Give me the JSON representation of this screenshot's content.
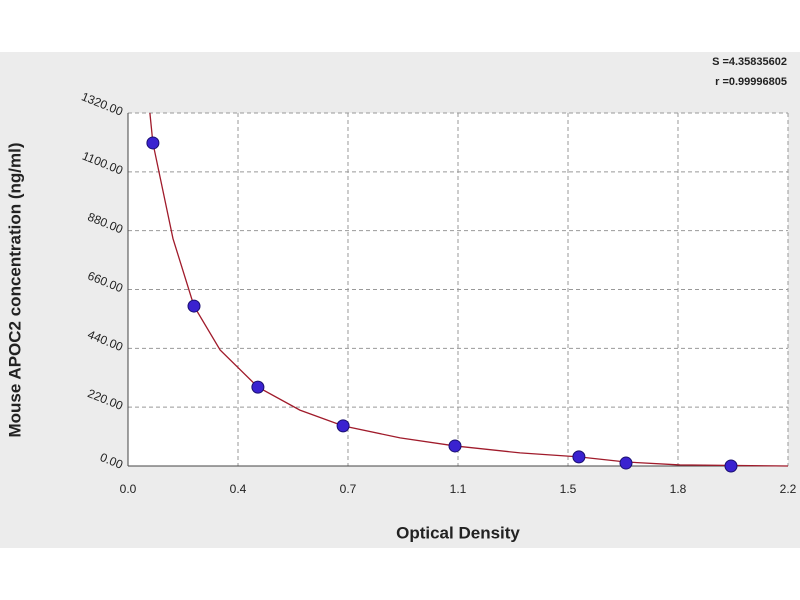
{
  "chart_data": {
    "type": "scatter",
    "annotations": [
      "S =4.35835602",
      "r =0.99996805"
    ],
    "x_label": "Optical Density",
    "y_label": "Mouse APOC2 concentration (ng/ml)",
    "xlim": [
      0,
      2.2
    ],
    "xticks": [
      {
        "value": 0,
        "label": "0.0"
      },
      {
        "value": 0.3667,
        "label": "0.4"
      },
      {
        "value": 0.7333,
        "label": "0.7"
      },
      1.1,
      {
        "value": 1.4667,
        "label": "1.5"
      },
      {
        "value": 1.8333,
        "label": "1.8"
      },
      2.2
    ],
    "ylim": [
      0,
      1320
    ],
    "yticks": [
      {
        "value": 0,
        "label": "0.00"
      },
      {
        "value": 220,
        "label": "220.00"
      },
      {
        "value": 440,
        "label": "440.00"
      },
      {
        "value": 660,
        "label": "660.00"
      },
      {
        "value": 880,
        "label": "880.00"
      },
      {
        "value": 1100,
        "label": "1100.00"
      },
      {
        "value": 1320,
        "label": "1320.00"
      }
    ],
    "grid": true,
    "points": {
      "color": "#3a22d0",
      "x": [
        0.083,
        0.22,
        0.433,
        0.717,
        1.09,
        1.503,
        1.66,
        2.01
      ],
      "y": [
        1208,
        598,
        295,
        150,
        75,
        34,
        11,
        0
      ]
    },
    "curve": {
      "color": "#a01b2b",
      "x": [
        0.073,
        0.083,
        0.15,
        0.22,
        0.307,
        0.433,
        0.573,
        0.717,
        0.907,
        1.09,
        1.307,
        1.503,
        1.66,
        1.84,
        2.2
      ],
      "y": [
        1320,
        1208,
        850,
        598,
        434,
        295,
        209,
        150,
        105,
        75,
        49,
        34,
        15,
        4,
        0
      ]
    }
  }
}
